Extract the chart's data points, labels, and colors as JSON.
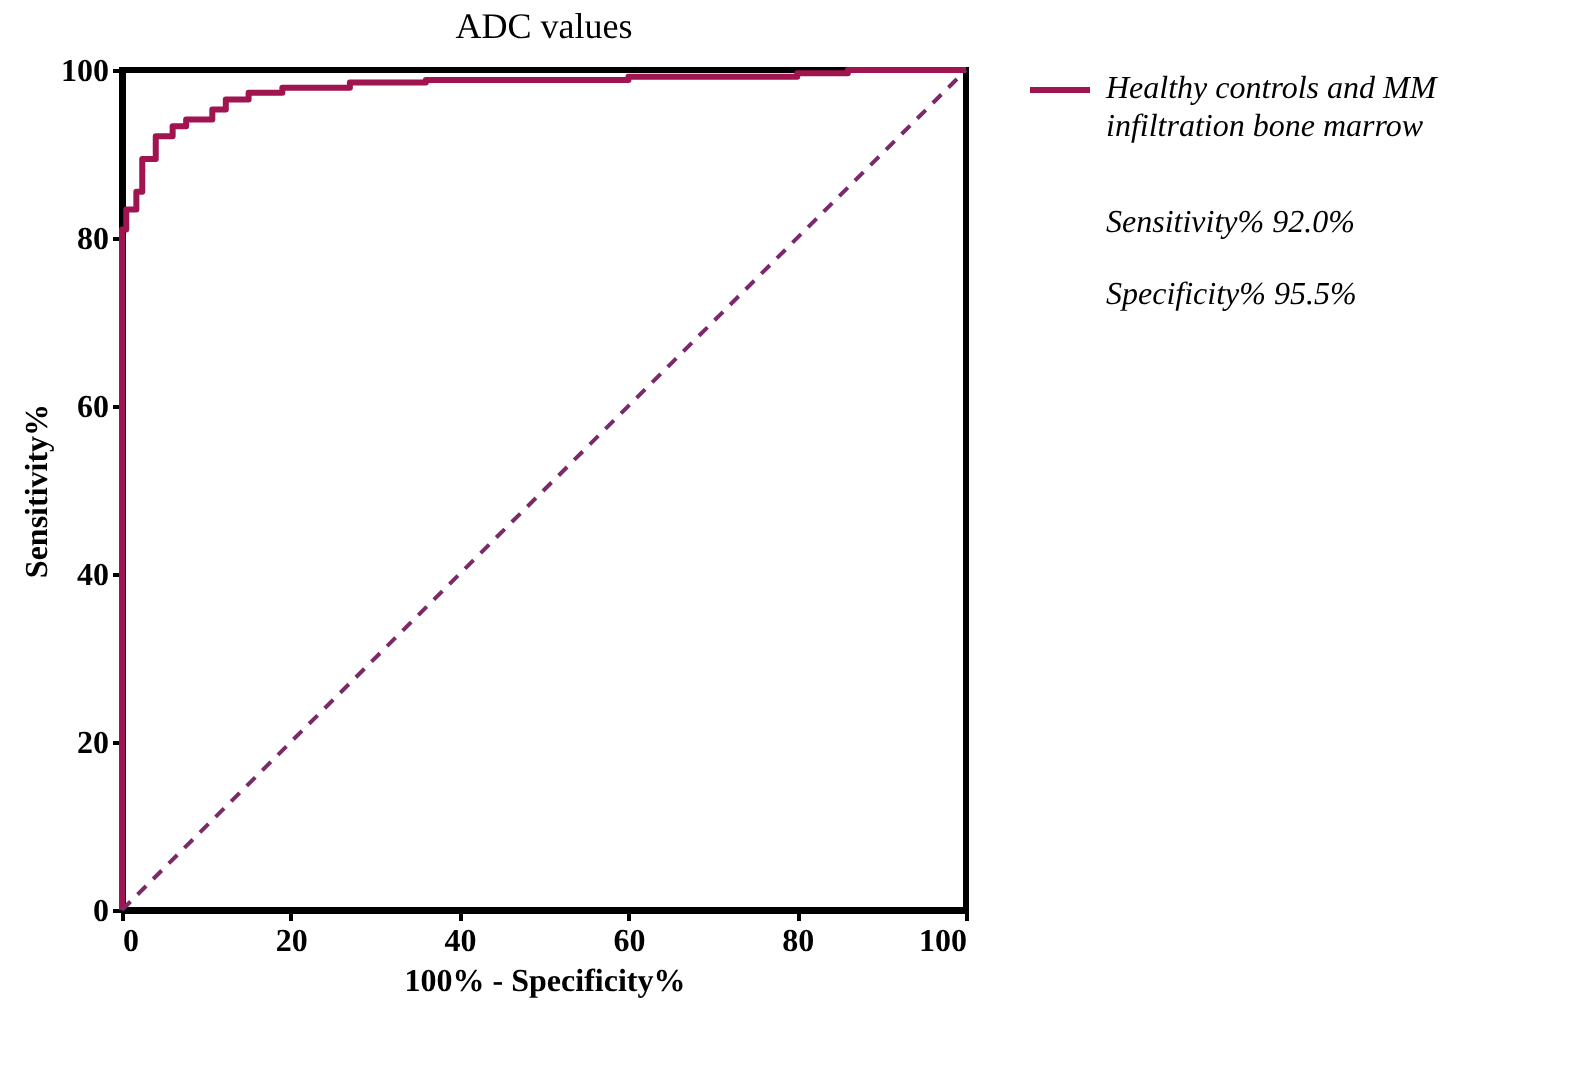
{
  "chart_data": {
    "type": "step",
    "title": "ADC values",
    "xlabel": "100% - Specificity%",
    "ylabel": "Sensitivity%",
    "xlim": [
      0,
      100
    ],
    "ylim": [
      0,
      100
    ],
    "xticks": [
      0,
      20,
      40,
      60,
      80,
      100
    ],
    "yticks": [
      0,
      20,
      40,
      60,
      80,
      100
    ],
    "grid": false,
    "legend": "right",
    "series": [
      {
        "name": "Healthy controls and MM infiltration bone marrow",
        "color": "#a0144f",
        "x": [
          0,
          0,
          0.5,
          1.7,
          2.4,
          4,
          6,
          7.6,
          10.7,
          12.3,
          15,
          19,
          27,
          36,
          60,
          80,
          86,
          100
        ],
        "values": [
          0,
          81,
          83.4,
          85.5,
          89.4,
          92.1,
          93.3,
          94.1,
          95.3,
          96.5,
          97.3,
          97.9,
          98.5,
          98.8,
          99.2,
          99.6,
          100,
          100
        ]
      },
      {
        "color": "#7a2a6a",
        "type": "line",
        "line_style": "dashed",
        "x": [
          0,
          100
        ],
        "values": [
          0,
          100
        ]
      }
    ],
    "annotations": [
      "Sensitivity%   92.0%",
      "Specificity%   95.5%"
    ]
  }
}
